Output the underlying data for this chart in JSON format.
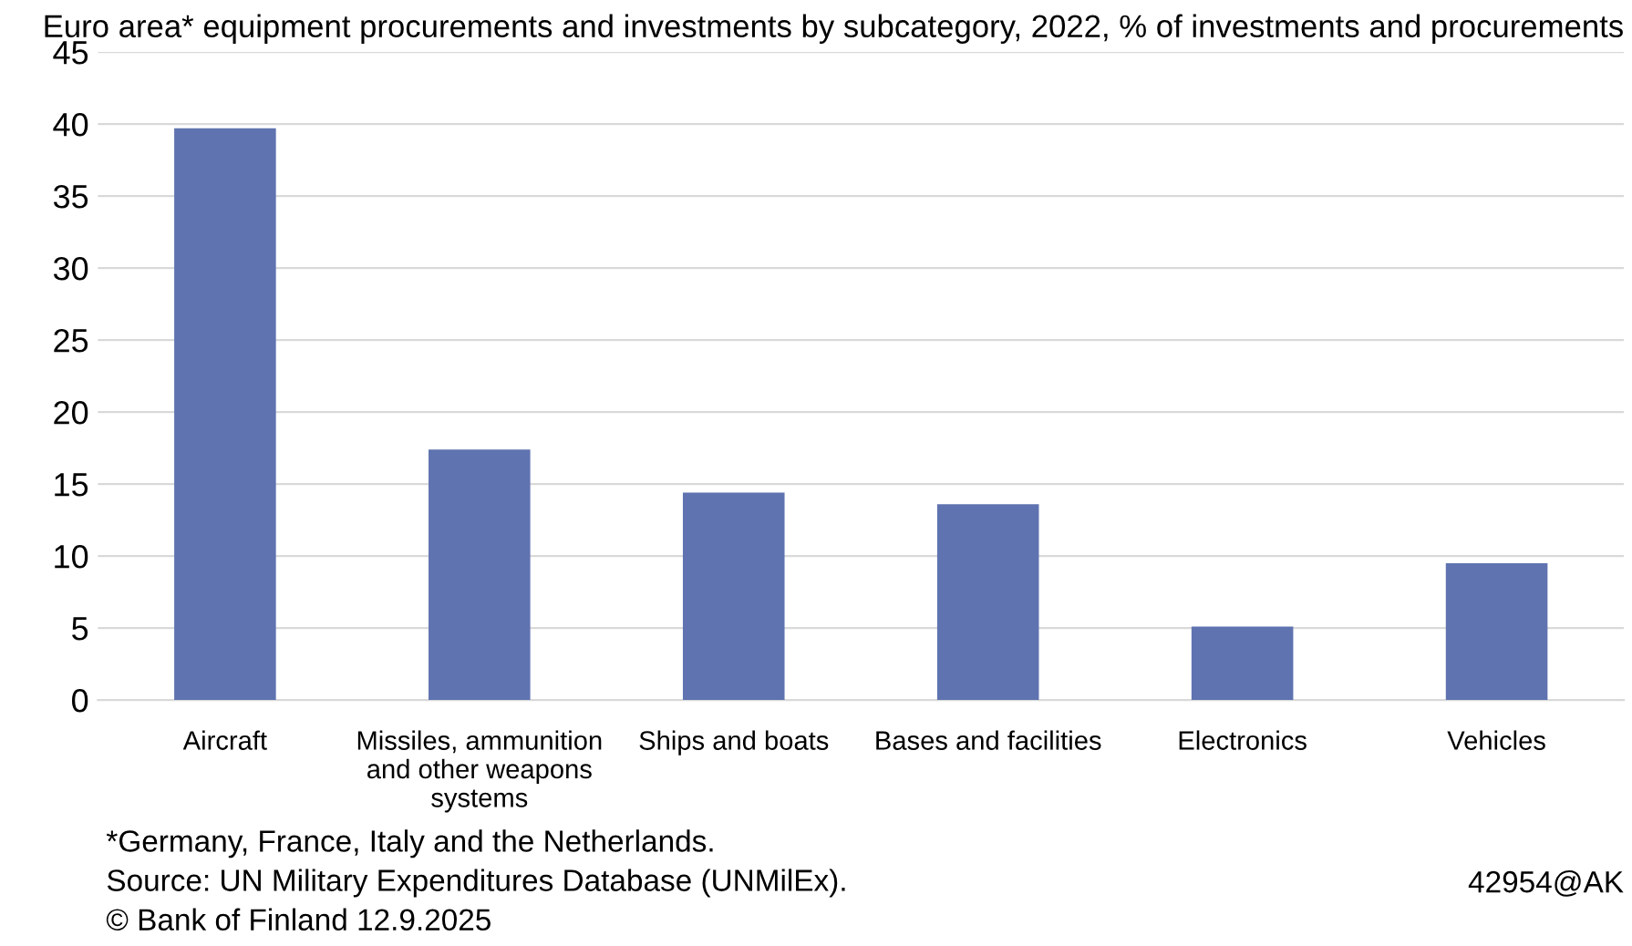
{
  "chart_data": {
    "type": "bar",
    "title": "Euro area* equipment procurements and investments by subcategory, 2022, % of investments and procurements",
    "categories": [
      "Aircraft",
      "Missiles, ammunition\nand other weapons\nsystems",
      "Ships and boats",
      "Bases and facilities",
      "Electronics",
      "Vehicles"
    ],
    "values": [
      39.7,
      17.4,
      14.4,
      13.6,
      5.1,
      9.5
    ],
    "color": "#5f73b0",
    "ylim": [
      0,
      45
    ],
    "yticks": [
      0,
      5,
      10,
      15,
      20,
      25,
      30,
      35,
      40,
      45
    ],
    "grid": "y",
    "annotations": [
      "*Germany, France, Italy and the Netherlands.\nSource: UN Military Expenditures Database (UNMilEx).\n© Bank of Finland 12.9.2025",
      "42954@AK"
    ]
  }
}
